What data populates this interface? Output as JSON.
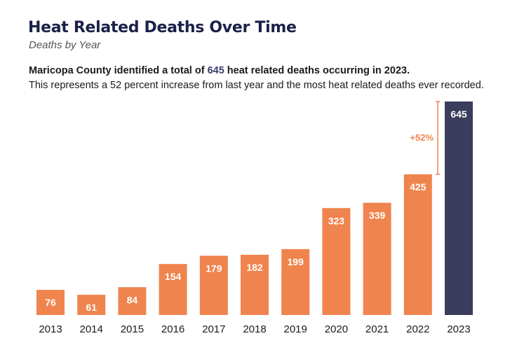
{
  "header": {
    "title": "Heat Related Deaths Over Time",
    "subtitle": "Deaths by Year",
    "lead_prefix": "Maricopa County identified a total of ",
    "lead_highlight": "645",
    "lead_suffix": " heat related deaths occurring in 2023.",
    "description": "This represents a 52 percent increase from last year and the most heat related deaths ever recorded."
  },
  "colors": {
    "bar": "#f0844e",
    "highlight_bar": "#3a3d5c",
    "title": "#1b2148",
    "annotation": "#f0844e"
  },
  "chart_data": {
    "type": "bar",
    "title": "Heat Related Deaths Over Time",
    "subtitle": "Deaths by Year",
    "xlabel": "",
    "ylabel": "",
    "categories": [
      "2013",
      "2014",
      "2015",
      "2016",
      "2017",
      "2018",
      "2019",
      "2020",
      "2021",
      "2022",
      "2023"
    ],
    "values": [
      76,
      61,
      84,
      154,
      179,
      182,
      199,
      323,
      339,
      425,
      645
    ],
    "highlight_category": "2023",
    "ylim": [
      0,
      645
    ],
    "grid": false,
    "data_labels": true,
    "annotation": {
      "from": "2022",
      "to": "2023",
      "label": "+52%"
    }
  }
}
